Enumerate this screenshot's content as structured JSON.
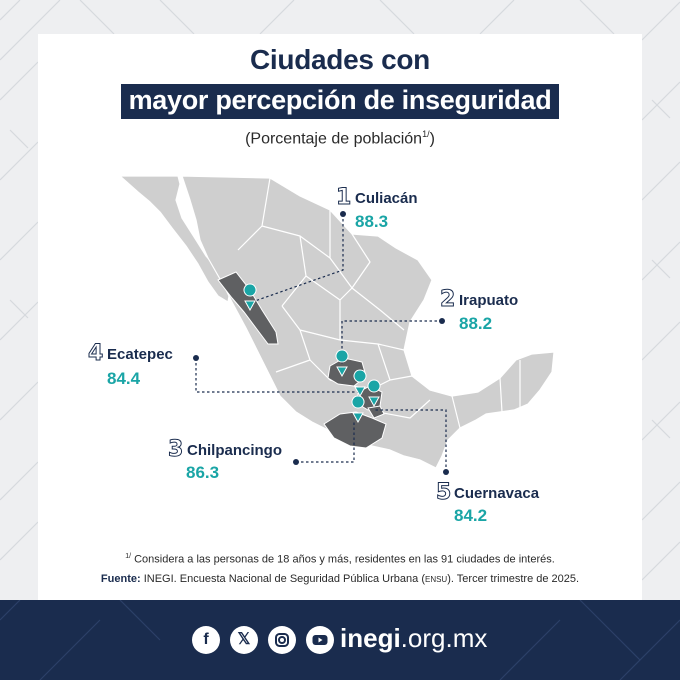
{
  "title_line1": "Ciudades con",
  "title_line2": "mayor percepción de inseguridad",
  "subtitle": "(Porcentaje de población",
  "subtitle_sup": "1/",
  "subtitle_close": ")",
  "cities": [
    {
      "rank": "1",
      "name": "Culiacán",
      "value": "88.3"
    },
    {
      "rank": "2",
      "name": "Irapuato",
      "value": "88.2"
    },
    {
      "rank": "3",
      "name": "Chilpancingo",
      "value": "86.3"
    },
    {
      "rank": "4",
      "name": "Ecatepec",
      "value": "84.4"
    },
    {
      "rank": "5",
      "name": "Cuernavaca",
      "value": "84.2"
    }
  ],
  "footnote_mark": "1/",
  "footnote_text": " Considera a las personas de 18 años y más, residentes en las 91 ciudades de interés.",
  "source_label": "Fuente:",
  "source_text": " INEGI. Encuesta Nacional de Seguridad Pública Urbana (",
  "source_abbr": "ENSU",
  "source_tail": "). Tercer trimestre de 2025.",
  "footer": {
    "icons": [
      "facebook-icon",
      "x-icon",
      "instagram-icon",
      "youtube-icon"
    ],
    "site_bold": "inegi",
    "site_rest": ".org.mx"
  },
  "colors": {
    "navy": "#1a2c4e",
    "teal": "#1aa5a6",
    "map_gray": "#cfcfcf",
    "state_dark": "#5f6062"
  }
}
